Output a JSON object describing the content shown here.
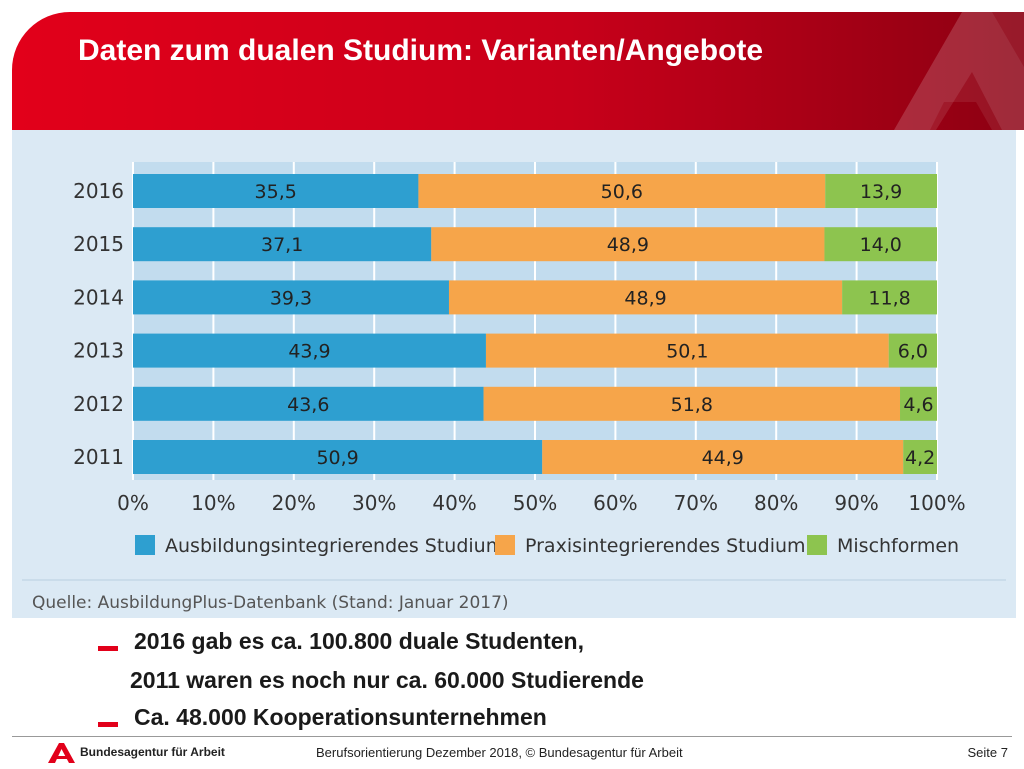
{
  "header": {
    "title": "Daten zum dualen Studium: Varianten/Angebote"
  },
  "colors": {
    "brand_red": "#e2001a",
    "series_1": "#2e9fd0",
    "series_2": "#f6a54a",
    "series_3": "#8dc44f",
    "panel_bg": "#dbe9f4"
  },
  "chart_data": {
    "type": "bar",
    "orientation": "horizontal",
    "stacked": true,
    "categories": [
      "2016",
      "2015",
      "2014",
      "2013",
      "2012",
      "2011"
    ],
    "series": [
      {
        "name": "Ausbildungsintegrierendes Studium",
        "values": [
          35.5,
          37.1,
          39.3,
          43.9,
          43.6,
          50.9
        ],
        "labels": [
          "35,5",
          "37,1",
          "39,3",
          "43,9",
          "43,6",
          "50,9"
        ]
      },
      {
        "name": "Praxisintegrierendes Studium",
        "values": [
          50.6,
          48.9,
          48.9,
          50.1,
          51.8,
          44.9
        ],
        "labels": [
          "50,6",
          "48,9",
          "48,9",
          "50,1",
          "51,8",
          "44,9"
        ]
      },
      {
        "name": "Mischformen",
        "values": [
          13.9,
          14.0,
          11.8,
          6.0,
          4.6,
          4.2
        ],
        "labels": [
          "13,9",
          "14,0",
          "11,8",
          "6,0",
          "4,6",
          "4,2"
        ]
      }
    ],
    "x_ticks": [
      "0%",
      "10%",
      "20%",
      "30%",
      "40%",
      "50%",
      "60%",
      "70%",
      "80%",
      "90%",
      "100%"
    ],
    "xlim": [
      0,
      100
    ],
    "grid": true,
    "legend_position": "bottom",
    "source": "Quelle: AusbildungPlus-Datenbank (Stand: Januar 2017)"
  },
  "bullets": [
    {
      "text": "2016 gab es ca. 100.800 duale Studenten,",
      "marker": true
    },
    {
      "text": "2011 waren es noch nur ca. 60.000 Studierende",
      "marker": false
    },
    {
      "text": "Ca. 48.000 Kooperationsunternehmen",
      "marker": true
    }
  ],
  "footer": {
    "org": "Bundesagentur für Arbeit",
    "center": "Berufsorientierung Dezember 2018, © Bundesagentur für Arbeit",
    "page": "Seite 7"
  }
}
